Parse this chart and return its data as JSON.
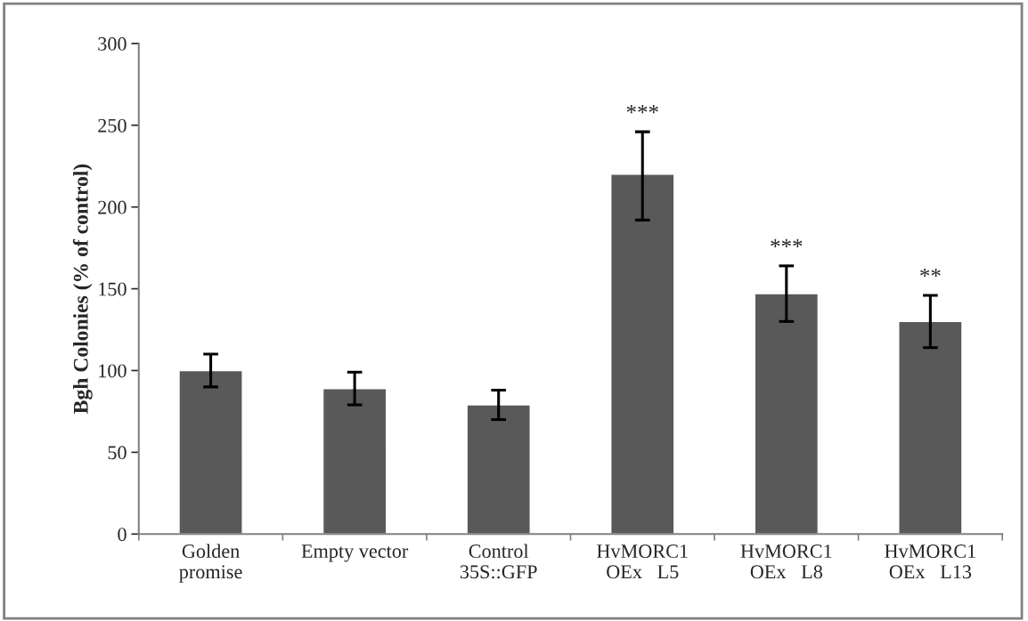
{
  "chart_data": {
    "type": "bar",
    "ylabel": "Bgh Colonies (% of control)",
    "categories": [
      "Golden\npromise",
      "Empty vector",
      "Control\n35S::GFP",
      "HvMORC1\nOEx   L5",
      "HvMORC1\nOEx   L8",
      "HvMORC1\nOEx   L13"
    ],
    "values": [
      100,
      89,
      79,
      220,
      147,
      130
    ],
    "errors": [
      [
        90,
        110
      ],
      [
        79,
        99
      ],
      [
        70,
        88
      ],
      [
        192,
        246
      ],
      [
        130,
        164
      ],
      [
        114,
        146
      ]
    ],
    "color": "#595959",
    "ylim": [
      0,
      300
    ],
    "yticks": [
      0,
      50,
      100,
      150,
      200,
      250,
      300
    ],
    "grid": false,
    "legend": false,
    "annotations": [
      "***",
      "***",
      "**"
    ]
  }
}
